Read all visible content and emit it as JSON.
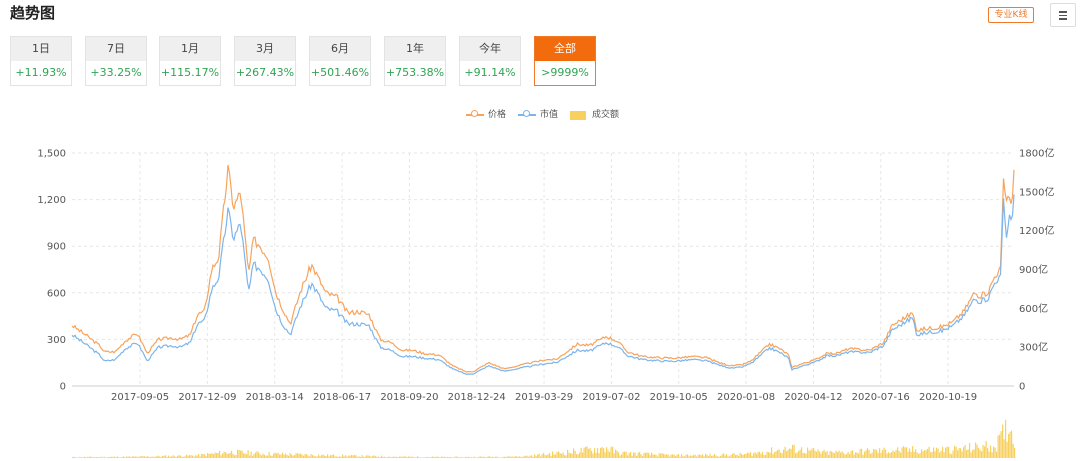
{
  "header": {
    "title": "趋势图",
    "kline_label": "专业K线",
    "menu_icon": "menu-icon"
  },
  "tabs": [
    {
      "label": "1日",
      "change": "+11.93%"
    },
    {
      "label": "7日",
      "change": "+33.25%"
    },
    {
      "label": "1月",
      "change": "+115.17%"
    },
    {
      "label": "3月",
      "change": "+267.43%"
    },
    {
      "label": "6月",
      "change": "+501.46%"
    },
    {
      "label": "1年",
      "change": "+753.38%"
    },
    {
      "label": "今年",
      "change": "+91.14%"
    },
    {
      "label": "全部",
      "change": ">9999%"
    }
  ],
  "active_tab": 7,
  "colors": {
    "price": "#f7a35c",
    "cap": "#7cb5ec",
    "volume": "#f8d060",
    "accent": "#f26b0c",
    "up": "#2fa452"
  },
  "chart_data": {
    "type": "line",
    "legend": [
      "价格",
      "市值",
      "成交额"
    ],
    "x_ticks": [
      "2017-09-05",
      "2017-12-09",
      "2018-03-14",
      "2018-06-17",
      "2018-09-20",
      "2018-12-24",
      "2019-03-29",
      "2019-07-02",
      "2019-10-05",
      "2020-01-08",
      "2020-04-12",
      "2020-07-16",
      "2020-10-19"
    ],
    "y_left": {
      "ticks": [
        "0",
        "300",
        "600",
        "900",
        "1,200",
        "1,500"
      ],
      "range": [
        0,
        1500
      ]
    },
    "y_right": {
      "ticks": [
        "0",
        "300亿",
        "600亿",
        "900亿",
        "1200亿",
        "1500亿",
        "1800亿"
      ],
      "range": [
        0,
        1800
      ]
    },
    "x_range": [
      "2017-06-01",
      "2021-01-20"
    ],
    "grid": true,
    "series": [
      {
        "name": "价格",
        "values": [
          [
            "2017-06-01",
            390
          ],
          [
            "2017-06-20",
            330
          ],
          [
            "2017-07-10",
            260
          ],
          [
            "2017-07-17",
            220
          ],
          [
            "2017-08-01",
            220
          ],
          [
            "2017-08-15",
            290
          ],
          [
            "2017-09-01",
            340
          ],
          [
            "2017-09-12",
            240
          ],
          [
            "2017-09-15",
            210
          ],
          [
            "2017-10-01",
            300
          ],
          [
            "2017-10-20",
            310
          ],
          [
            "2017-11-01",
            300
          ],
          [
            "2017-11-15",
            330
          ],
          [
            "2017-11-25",
            460
          ],
          [
            "2017-12-05",
            480
          ],
          [
            "2017-12-15",
            750
          ],
          [
            "2017-12-25",
            830
          ],
          [
            "2018-01-07",
            1400
          ],
          [
            "2018-01-15",
            1150
          ],
          [
            "2018-01-25",
            1250
          ],
          [
            "2018-02-05",
            720
          ],
          [
            "2018-02-12",
            940
          ],
          [
            "2018-02-20",
            910
          ],
          [
            "2018-02-28",
            860
          ],
          [
            "2018-03-05",
            830
          ],
          [
            "2018-03-15",
            610
          ],
          [
            "2018-03-25",
            500
          ],
          [
            "2018-04-05",
            400
          ],
          [
            "2018-04-20",
            620
          ],
          [
            "2018-05-05",
            780
          ],
          [
            "2018-05-12",
            720
          ],
          [
            "2018-05-25",
            600
          ],
          [
            "2018-06-10",
            570
          ],
          [
            "2018-06-25",
            470
          ],
          [
            "2018-07-10",
            480
          ],
          [
            "2018-07-25",
            460
          ],
          [
            "2018-08-10",
            300
          ],
          [
            "2018-08-25",
            280
          ],
          [
            "2018-09-10",
            230
          ],
          [
            "2018-09-25",
            230
          ],
          [
            "2018-10-10",
            210
          ],
          [
            "2018-11-01",
            200
          ],
          [
            "2018-11-20",
            130
          ],
          [
            "2018-12-10",
            90
          ],
          [
            "2018-12-20",
            95
          ],
          [
            "2019-01-10",
            150
          ],
          [
            "2019-02-01",
            110
          ],
          [
            "2019-03-01",
            140
          ],
          [
            "2019-04-01",
            170
          ],
          [
            "2019-04-15",
            170
          ],
          [
            "2019-05-15",
            270
          ],
          [
            "2019-06-01",
            260
          ],
          [
            "2019-06-25",
            320
          ],
          [
            "2019-07-10",
            290
          ],
          [
            "2019-07-25",
            220
          ],
          [
            "2019-08-15",
            190
          ],
          [
            "2019-09-15",
            180
          ],
          [
            "2019-10-01",
            180
          ],
          [
            "2019-10-25",
            190
          ],
          [
            "2019-11-15",
            180
          ],
          [
            "2019-12-01",
            150
          ],
          [
            "2019-12-18",
            130
          ],
          [
            "2020-01-01",
            135
          ],
          [
            "2020-01-15",
            160
          ],
          [
            "2020-02-10",
            270
          ],
          [
            "2020-02-25",
            240
          ],
          [
            "2020-03-08",
            200
          ],
          [
            "2020-03-12",
            120
          ],
          [
            "2020-03-25",
            140
          ],
          [
            "2020-04-15",
            170
          ],
          [
            "2020-05-01",
            210
          ],
          [
            "2020-05-15",
            210
          ],
          [
            "2020-06-01",
            240
          ],
          [
            "2020-06-30",
            230
          ],
          [
            "2020-07-20",
            280
          ],
          [
            "2020-08-01",
            390
          ],
          [
            "2020-08-15",
            430
          ],
          [
            "2020-08-30",
            470
          ],
          [
            "2020-09-05",
            360
          ],
          [
            "2020-09-20",
            370
          ],
          [
            "2020-10-10",
            380
          ],
          [
            "2020-10-25",
            410
          ],
          [
            "2020-11-10",
            480
          ],
          [
            "2020-11-25",
            600
          ],
          [
            "2020-12-05",
            580
          ],
          [
            "2020-12-15",
            610
          ],
          [
            "2020-12-25",
            720
          ],
          [
            "2021-01-01",
            750
          ],
          [
            "2021-01-05",
            1300
          ],
          [
            "2021-01-10",
            1200
          ],
          [
            "2021-01-14",
            1250
          ],
          [
            "2021-01-17",
            1100
          ],
          [
            "2021-01-20",
            1400
          ]
        ]
      },
      {
        "name": "市值",
        "values": [
          [
            "2017-06-01",
            330
          ],
          [
            "2017-06-20",
            270
          ],
          [
            "2017-07-10",
            200
          ],
          [
            "2017-07-17",
            160
          ],
          [
            "2017-08-01",
            170
          ],
          [
            "2017-08-15",
            240
          ],
          [
            "2017-09-01",
            280
          ],
          [
            "2017-09-12",
            190
          ],
          [
            "2017-09-15",
            160
          ],
          [
            "2017-10-01",
            250
          ],
          [
            "2017-10-20",
            260
          ],
          [
            "2017-11-01",
            250
          ],
          [
            "2017-11-15",
            280
          ],
          [
            "2017-11-25",
            400
          ],
          [
            "2017-12-05",
            420
          ],
          [
            "2017-12-15",
            620
          ],
          [
            "2017-12-25",
            700
          ],
          [
            "2018-01-07",
            1130
          ],
          [
            "2018-01-15",
            950
          ],
          [
            "2018-01-25",
            1050
          ],
          [
            "2018-02-05",
            600
          ],
          [
            "2018-02-12",
            780
          ],
          [
            "2018-02-20",
            760
          ],
          [
            "2018-02-28",
            720
          ],
          [
            "2018-03-05",
            690
          ],
          [
            "2018-03-15",
            500
          ],
          [
            "2018-03-25",
            400
          ],
          [
            "2018-04-05",
            330
          ],
          [
            "2018-04-20",
            520
          ],
          [
            "2018-05-05",
            660
          ],
          [
            "2018-05-12",
            610
          ],
          [
            "2018-05-25",
            500
          ],
          [
            "2018-06-10",
            480
          ],
          [
            "2018-06-25",
            400
          ],
          [
            "2018-07-10",
            400
          ],
          [
            "2018-07-25",
            390
          ],
          [
            "2018-08-10",
            250
          ],
          [
            "2018-08-25",
            230
          ],
          [
            "2018-09-10",
            190
          ],
          [
            "2018-09-25",
            190
          ],
          [
            "2018-10-10",
            180
          ],
          [
            "2018-11-01",
            170
          ],
          [
            "2018-11-20",
            110
          ],
          [
            "2018-12-10",
            75
          ],
          [
            "2018-12-20",
            80
          ],
          [
            "2019-01-10",
            130
          ],
          [
            "2019-02-01",
            95
          ],
          [
            "2019-03-01",
            120
          ],
          [
            "2019-04-01",
            145
          ],
          [
            "2019-04-15",
            150
          ],
          [
            "2019-05-15",
            230
          ],
          [
            "2019-06-01",
            225
          ],
          [
            "2019-06-25",
            280
          ],
          [
            "2019-07-10",
            255
          ],
          [
            "2019-07-25",
            195
          ],
          [
            "2019-08-15",
            170
          ],
          [
            "2019-09-15",
            160
          ],
          [
            "2019-10-01",
            160
          ],
          [
            "2019-10-25",
            170
          ],
          [
            "2019-11-15",
            160
          ],
          [
            "2019-12-01",
            135
          ],
          [
            "2019-12-18",
            115
          ],
          [
            "2020-01-01",
            120
          ],
          [
            "2020-01-15",
            145
          ],
          [
            "2020-02-10",
            245
          ],
          [
            "2020-02-25",
            215
          ],
          [
            "2020-03-08",
            180
          ],
          [
            "2020-03-12",
            105
          ],
          [
            "2020-03-25",
            125
          ],
          [
            "2020-04-15",
            155
          ],
          [
            "2020-05-01",
            195
          ],
          [
            "2020-05-15",
            195
          ],
          [
            "2020-06-01",
            220
          ],
          [
            "2020-06-30",
            215
          ],
          [
            "2020-07-20",
            260
          ],
          [
            "2020-08-01",
            360
          ],
          [
            "2020-08-15",
            400
          ],
          [
            "2020-08-30",
            440
          ],
          [
            "2020-09-05",
            330
          ],
          [
            "2020-09-20",
            345
          ],
          [
            "2020-10-10",
            355
          ],
          [
            "2020-10-25",
            385
          ],
          [
            "2020-11-10",
            450
          ],
          [
            "2020-11-25",
            560
          ],
          [
            "2020-12-05",
            545
          ],
          [
            "2020-12-15",
            570
          ],
          [
            "2020-12-25",
            680
          ],
          [
            "2021-01-01",
            700
          ],
          [
            "2021-01-05",
            1180
          ],
          [
            "2021-01-10",
            940
          ],
          [
            "2021-01-14",
            1150
          ],
          [
            "2021-01-17",
            1000
          ],
          [
            "2021-01-20",
            1240
          ]
        ]
      },
      {
        "name": "成交额",
        "values": [
          [
            "2017-06-01",
            1
          ],
          [
            "2017-09-01",
            1.5
          ],
          [
            "2017-11-25",
            3
          ],
          [
            "2018-01-07",
            7
          ],
          [
            "2018-03-01",
            5
          ],
          [
            "2018-06-01",
            3
          ],
          [
            "2018-09-01",
            1.5
          ],
          [
            "2018-12-01",
            1
          ],
          [
            "2019-03-01",
            2
          ],
          [
            "2019-05-15",
            8
          ],
          [
            "2019-06-25",
            12
          ],
          [
            "2019-07-10",
            6
          ],
          [
            "2019-10-01",
            3
          ],
          [
            "2020-01-01",
            4
          ],
          [
            "2020-03-12",
            11
          ],
          [
            "2020-05-01",
            6
          ],
          [
            "2020-08-01",
            9
          ],
          [
            "2020-11-01",
            10
          ],
          [
            "2020-12-25",
            15
          ],
          [
            "2021-01-05",
            28
          ],
          [
            "2021-01-10",
            40
          ],
          [
            "2021-01-20",
            25
          ]
        ]
      }
    ]
  }
}
